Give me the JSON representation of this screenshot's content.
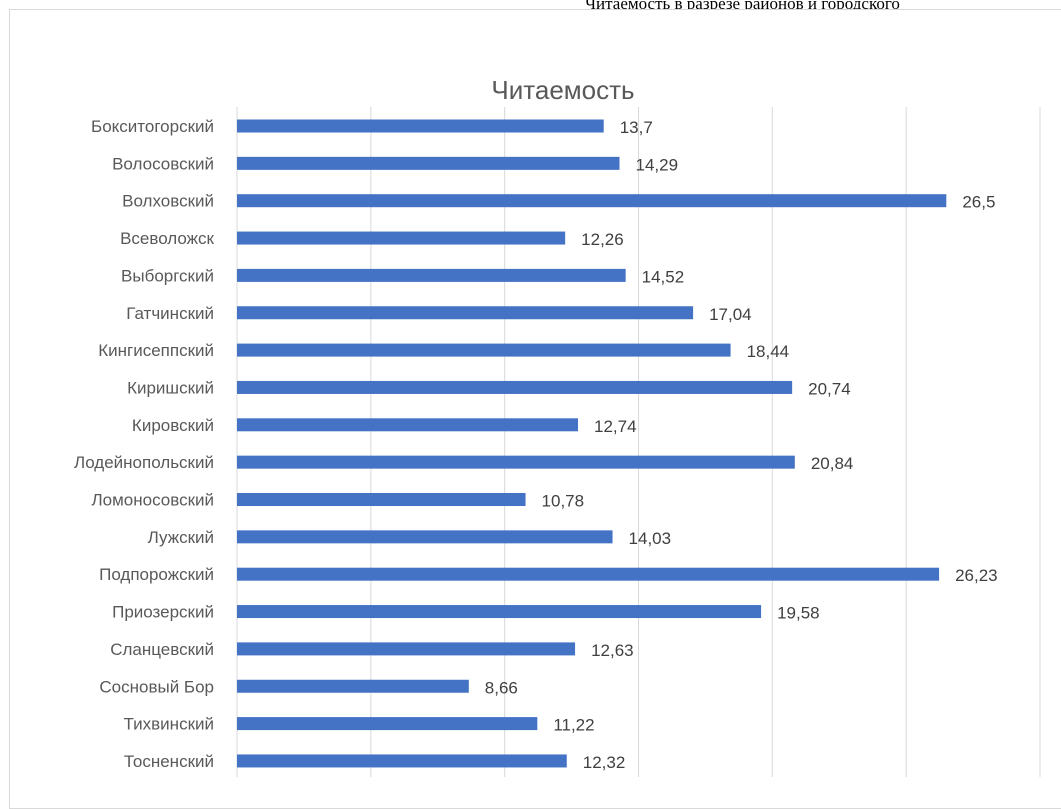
{
  "document": {
    "header_text": "Читаемость в разрезе районов и городского"
  },
  "chart_data": {
    "type": "bar",
    "orientation": "horizontal",
    "title": "Читаемость",
    "xlabel": "",
    "ylabel": "",
    "xlim": [
      0,
      30
    ],
    "grid": true,
    "legend": "none",
    "bar_color": "#4472c4",
    "categories": [
      "Бокситогорский",
      "Волосовский",
      "Волховский",
      "Всеволожск",
      "Выборгский",
      "Гатчинский",
      "Кингисеппский",
      "Киришский",
      "Кировский",
      "Лодейнопольский",
      "Ломоносовский",
      "Лужский",
      "Подпорожский",
      "Приозерский",
      "Сланцевский",
      "Сосновый Бор",
      "Тихвинский",
      "Тосненский"
    ],
    "values": [
      13.7,
      14.29,
      26.5,
      12.26,
      14.52,
      17.04,
      18.44,
      20.74,
      12.74,
      20.84,
      10.78,
      14.03,
      26.23,
      19.58,
      12.63,
      8.66,
      11.22,
      12.32
    ],
    "data_labels": [
      "13,7",
      "14,29",
      "26,5",
      "12,26",
      "14,52",
      "17,04",
      "18,44",
      "20,74",
      "12,74",
      "20,84",
      "10,78",
      "14,03",
      "26,23",
      "19,58",
      "12,63",
      "8,66",
      "11,22",
      "12,32"
    ]
  }
}
